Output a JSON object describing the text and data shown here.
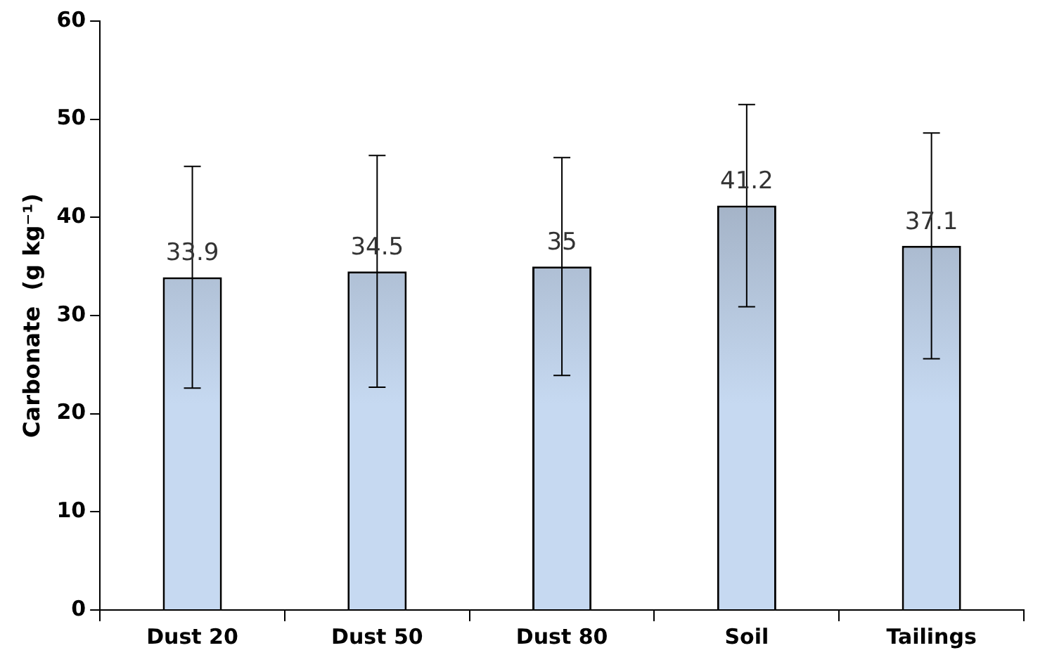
{
  "chart_data": {
    "type": "bar",
    "ylabel": "Carbonate  (g kg⁻¹)",
    "categories": [
      "Dust 20",
      "Dust 50",
      "Dust 80",
      "Soil",
      "Tailings"
    ],
    "values": [
      33.9,
      34.5,
      35,
      41.2,
      37.1
    ],
    "errors": [
      11.3,
      11.8,
      11.1,
      10.3,
      11.5
    ],
    "color": "#c6d9f1",
    "ylim": [
      0,
      60
    ],
    "yticks": [
      0,
      10,
      20,
      30,
      40,
      50,
      60
    ],
    "grid": false,
    "legend": false,
    "data_labels": true
  }
}
